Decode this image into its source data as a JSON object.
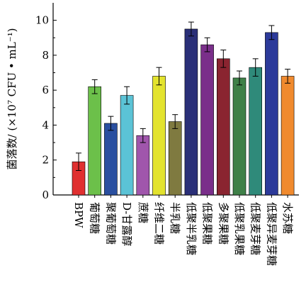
{
  "chart_data": {
    "type": "bar",
    "title": "",
    "xlabel": "",
    "ylabel": "菌落数/ (×10⁷ CFU • mL⁻¹)",
    "ylim": [
      0,
      11
    ],
    "yticks": [
      0,
      2,
      4,
      6,
      8,
      10
    ],
    "grid": false,
    "categories": [
      "BPW",
      "葡萄糖",
      "聚葡萄糖",
      "D-甘露醇",
      "蔗糖",
      "纤维二糖",
      "半乳糖",
      "低聚半乳糖",
      "低聚果糖",
      "多聚果糖",
      "低聚乳果糖",
      "低聚麦芽糖",
      "低聚异麦芽糖",
      "水苏糖"
    ],
    "values": [
      1.9,
      6.2,
      4.1,
      5.7,
      3.4,
      6.8,
      4.2,
      9.5,
      8.6,
      7.8,
      6.7,
      7.3,
      9.3,
      6.8
    ],
    "errors": [
      0.5,
      0.4,
      0.4,
      0.5,
      0.4,
      0.5,
      0.4,
      0.4,
      0.4,
      0.5,
      0.4,
      0.5,
      0.4,
      0.4
    ],
    "colors": [
      "#e03030",
      "#6cc04a",
      "#2a4fa0",
      "#5bc3d6",
      "#a056ac",
      "#e3e32e",
      "#7f7a40",
      "#2a2f78",
      "#7a2f8a",
      "#8a2430",
      "#3f8048",
      "#2f8a7a",
      "#2c3a9a",
      "#f08a2e"
    ]
  }
}
